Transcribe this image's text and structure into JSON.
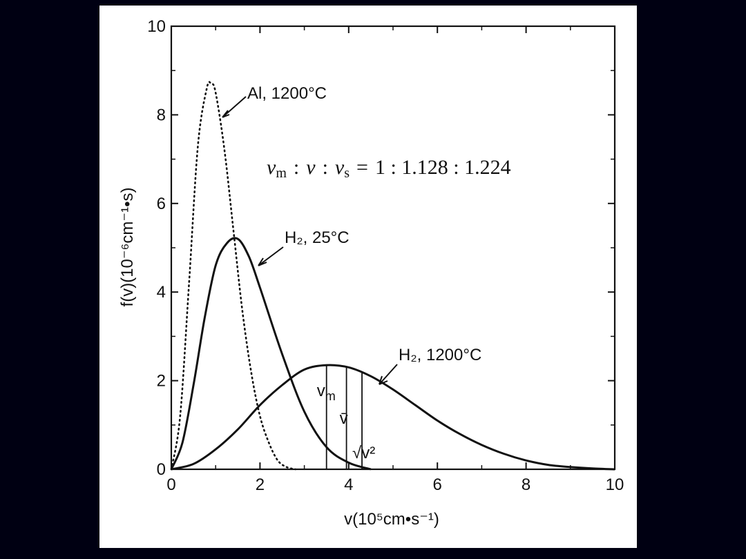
{
  "chart_data": {
    "type": "line",
    "xlabel": "v(10⁵cm•s⁻¹)",
    "ylabel": "f(v)(10⁻⁶cm⁻¹•s)",
    "xlim": [
      0,
      10
    ],
    "ylim": [
      0,
      10
    ],
    "x_ticks": [
      "0",
      "2",
      "4",
      "6",
      "8",
      "10"
    ],
    "y_ticks": [
      "0",
      "2",
      "4",
      "6",
      "8",
      "10"
    ],
    "grid": false,
    "series": [
      {
        "name": "Al, 1200°C",
        "style": "dotted",
        "x": [
          0,
          0.2,
          0.4,
          0.6,
          0.8,
          0.9,
          1.0,
          1.2,
          1.4,
          1.6,
          1.8,
          2.0,
          2.2,
          2.4,
          2.6,
          2.8
        ],
        "y": [
          0,
          1.2,
          4.2,
          7.3,
          8.6,
          8.7,
          8.5,
          7.2,
          5.4,
          3.6,
          2.2,
          1.2,
          0.6,
          0.2,
          0.05,
          0
        ]
      },
      {
        "name": "H₂, 25°C",
        "style": "solid",
        "x": [
          0,
          0.25,
          0.5,
          0.75,
          1.0,
          1.25,
          1.5,
          1.75,
          2.0,
          2.5,
          3.0,
          3.5,
          4.0,
          4.5
        ],
        "y": [
          0,
          0.6,
          1.9,
          3.4,
          4.6,
          5.1,
          5.2,
          4.8,
          4.1,
          2.6,
          1.3,
          0.5,
          0.15,
          0
        ]
      },
      {
        "name": "H₂, 1200°C",
        "style": "solid",
        "x": [
          0,
          0.5,
          1,
          1.5,
          2,
          2.5,
          3,
          3.5,
          4,
          4.5,
          5,
          5.5,
          6,
          6.5,
          7,
          7.5,
          8,
          8.5,
          9,
          9.5,
          10
        ],
        "y": [
          0,
          0.12,
          0.45,
          0.9,
          1.45,
          1.9,
          2.25,
          2.35,
          2.3,
          2.1,
          1.8,
          1.45,
          1.1,
          0.8,
          0.55,
          0.35,
          0.2,
          0.1,
          0.05,
          0.02,
          0
        ]
      }
    ],
    "markers": [
      {
        "label": "v",
        "sub": "m",
        "x": 3.5
      },
      {
        "label": "v̄",
        "x": 3.95
      },
      {
        "label": "√v²",
        "x": 4.3
      }
    ],
    "formula": {
      "terms": [
        {
          "v": "v",
          "sub": "m"
        },
        {
          "v": "v",
          "sub": ""
        },
        {
          "v": "v",
          "sub": "s"
        }
      ],
      "sep": ":",
      "equals": "=",
      "ratio": "1 : 1.128 : 1.224"
    }
  }
}
